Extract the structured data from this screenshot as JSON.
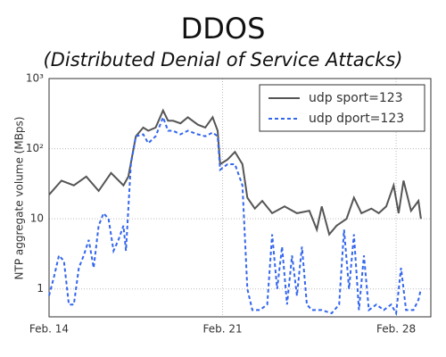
{
  "chart_data": {
    "type": "line",
    "title": "DDOS",
    "subtitle": "(Distributed Denial of Service Attacks)",
    "y_label": "NTP aggregate volume (MBps)",
    "log_y": true,
    "grid": true,
    "legend": "upper right",
    "xlim": [
      14,
      29.4
    ],
    "xticks": [
      {
        "value": 14,
        "label": "Feb. 14"
      },
      {
        "value": 21,
        "label": "Feb. 21"
      },
      {
        "value": 28,
        "label": "Feb. 28"
      }
    ],
    "ylim": [
      0.4,
      1000
    ],
    "yticks": [
      1,
      10,
      {
        "value": 100,
        "label": "10²"
      },
      {
        "value": 1000,
        "label": "10³"
      }
    ],
    "series": [
      {
        "name": "udp sport=123",
        "color": "#555555",
        "dash": "solid",
        "x": [
          14,
          14.5,
          15,
          15.5,
          16,
          16.5,
          17,
          17.2,
          17.5,
          17.8,
          18,
          18.3,
          18.6,
          18.8,
          19,
          19.3,
          19.6,
          20,
          20.3,
          20.6,
          20.8,
          20.9,
          21.2,
          21.5,
          21.8,
          22,
          22.3,
          22.6,
          23,
          23.5,
          24,
          24.5,
          24.8,
          25,
          25.3,
          25.6,
          26,
          26.3,
          26.6,
          27,
          27.3,
          27.6,
          27.9,
          28.1,
          28.3,
          28.6,
          28.9,
          29
        ],
        "values": [
          22,
          35,
          30,
          40,
          25,
          45,
          30,
          40,
          150,
          200,
          180,
          200,
          350,
          250,
          250,
          230,
          280,
          220,
          200,
          280,
          180,
          60,
          70,
          90,
          60,
          20,
          14,
          18,
          12,
          15,
          12,
          13,
          7,
          15,
          6,
          8,
          10,
          20,
          12,
          14,
          12,
          15,
          30,
          12,
          35,
          13,
          18,
          10
        ]
      },
      {
        "name": "udp dport=123",
        "color": "#3366ee",
        "dash": "dashed",
        "x": [
          14,
          14.2,
          14.4,
          14.6,
          14.8,
          15,
          15.2,
          15.4,
          15.6,
          15.8,
          16,
          16.2,
          16.4,
          16.6,
          16.8,
          17,
          17.1,
          17.3,
          17.5,
          17.8,
          18,
          18.3,
          18.6,
          18.8,
          19,
          19.3,
          19.6,
          20,
          20.3,
          20.6,
          20.8,
          20.9,
          21.2,
          21.5,
          21.8,
          22,
          22.2,
          22.5,
          22.8,
          23,
          23.2,
          23.4,
          23.6,
          23.8,
          24,
          24.2,
          24.4,
          24.6,
          25,
          25.4,
          25.7,
          25.9,
          26.1,
          26.3,
          26.5,
          26.7,
          26.9,
          27.2,
          27.5,
          27.8,
          28,
          28.2,
          28.4,
          28.7,
          28.9,
          29
        ],
        "values": [
          0.8,
          1.5,
          3,
          2.5,
          0.6,
          0.6,
          2,
          3,
          5,
          2,
          8,
          12,
          10,
          3.5,
          5,
          8,
          3.5,
          60,
          150,
          160,
          120,
          150,
          280,
          180,
          180,
          160,
          180,
          160,
          150,
          170,
          150,
          50,
          60,
          60,
          30,
          1,
          0.5,
          0.5,
          0.6,
          6,
          1,
          4,
          0.6,
          3,
          0.8,
          4,
          0.6,
          0.5,
          0.5,
          0.45,
          0.6,
          7,
          1,
          6,
          0.5,
          3,
          0.5,
          0.6,
          0.5,
          0.6,
          0.45,
          2,
          0.5,
          0.5,
          0.7,
          1
        ]
      }
    ]
  }
}
